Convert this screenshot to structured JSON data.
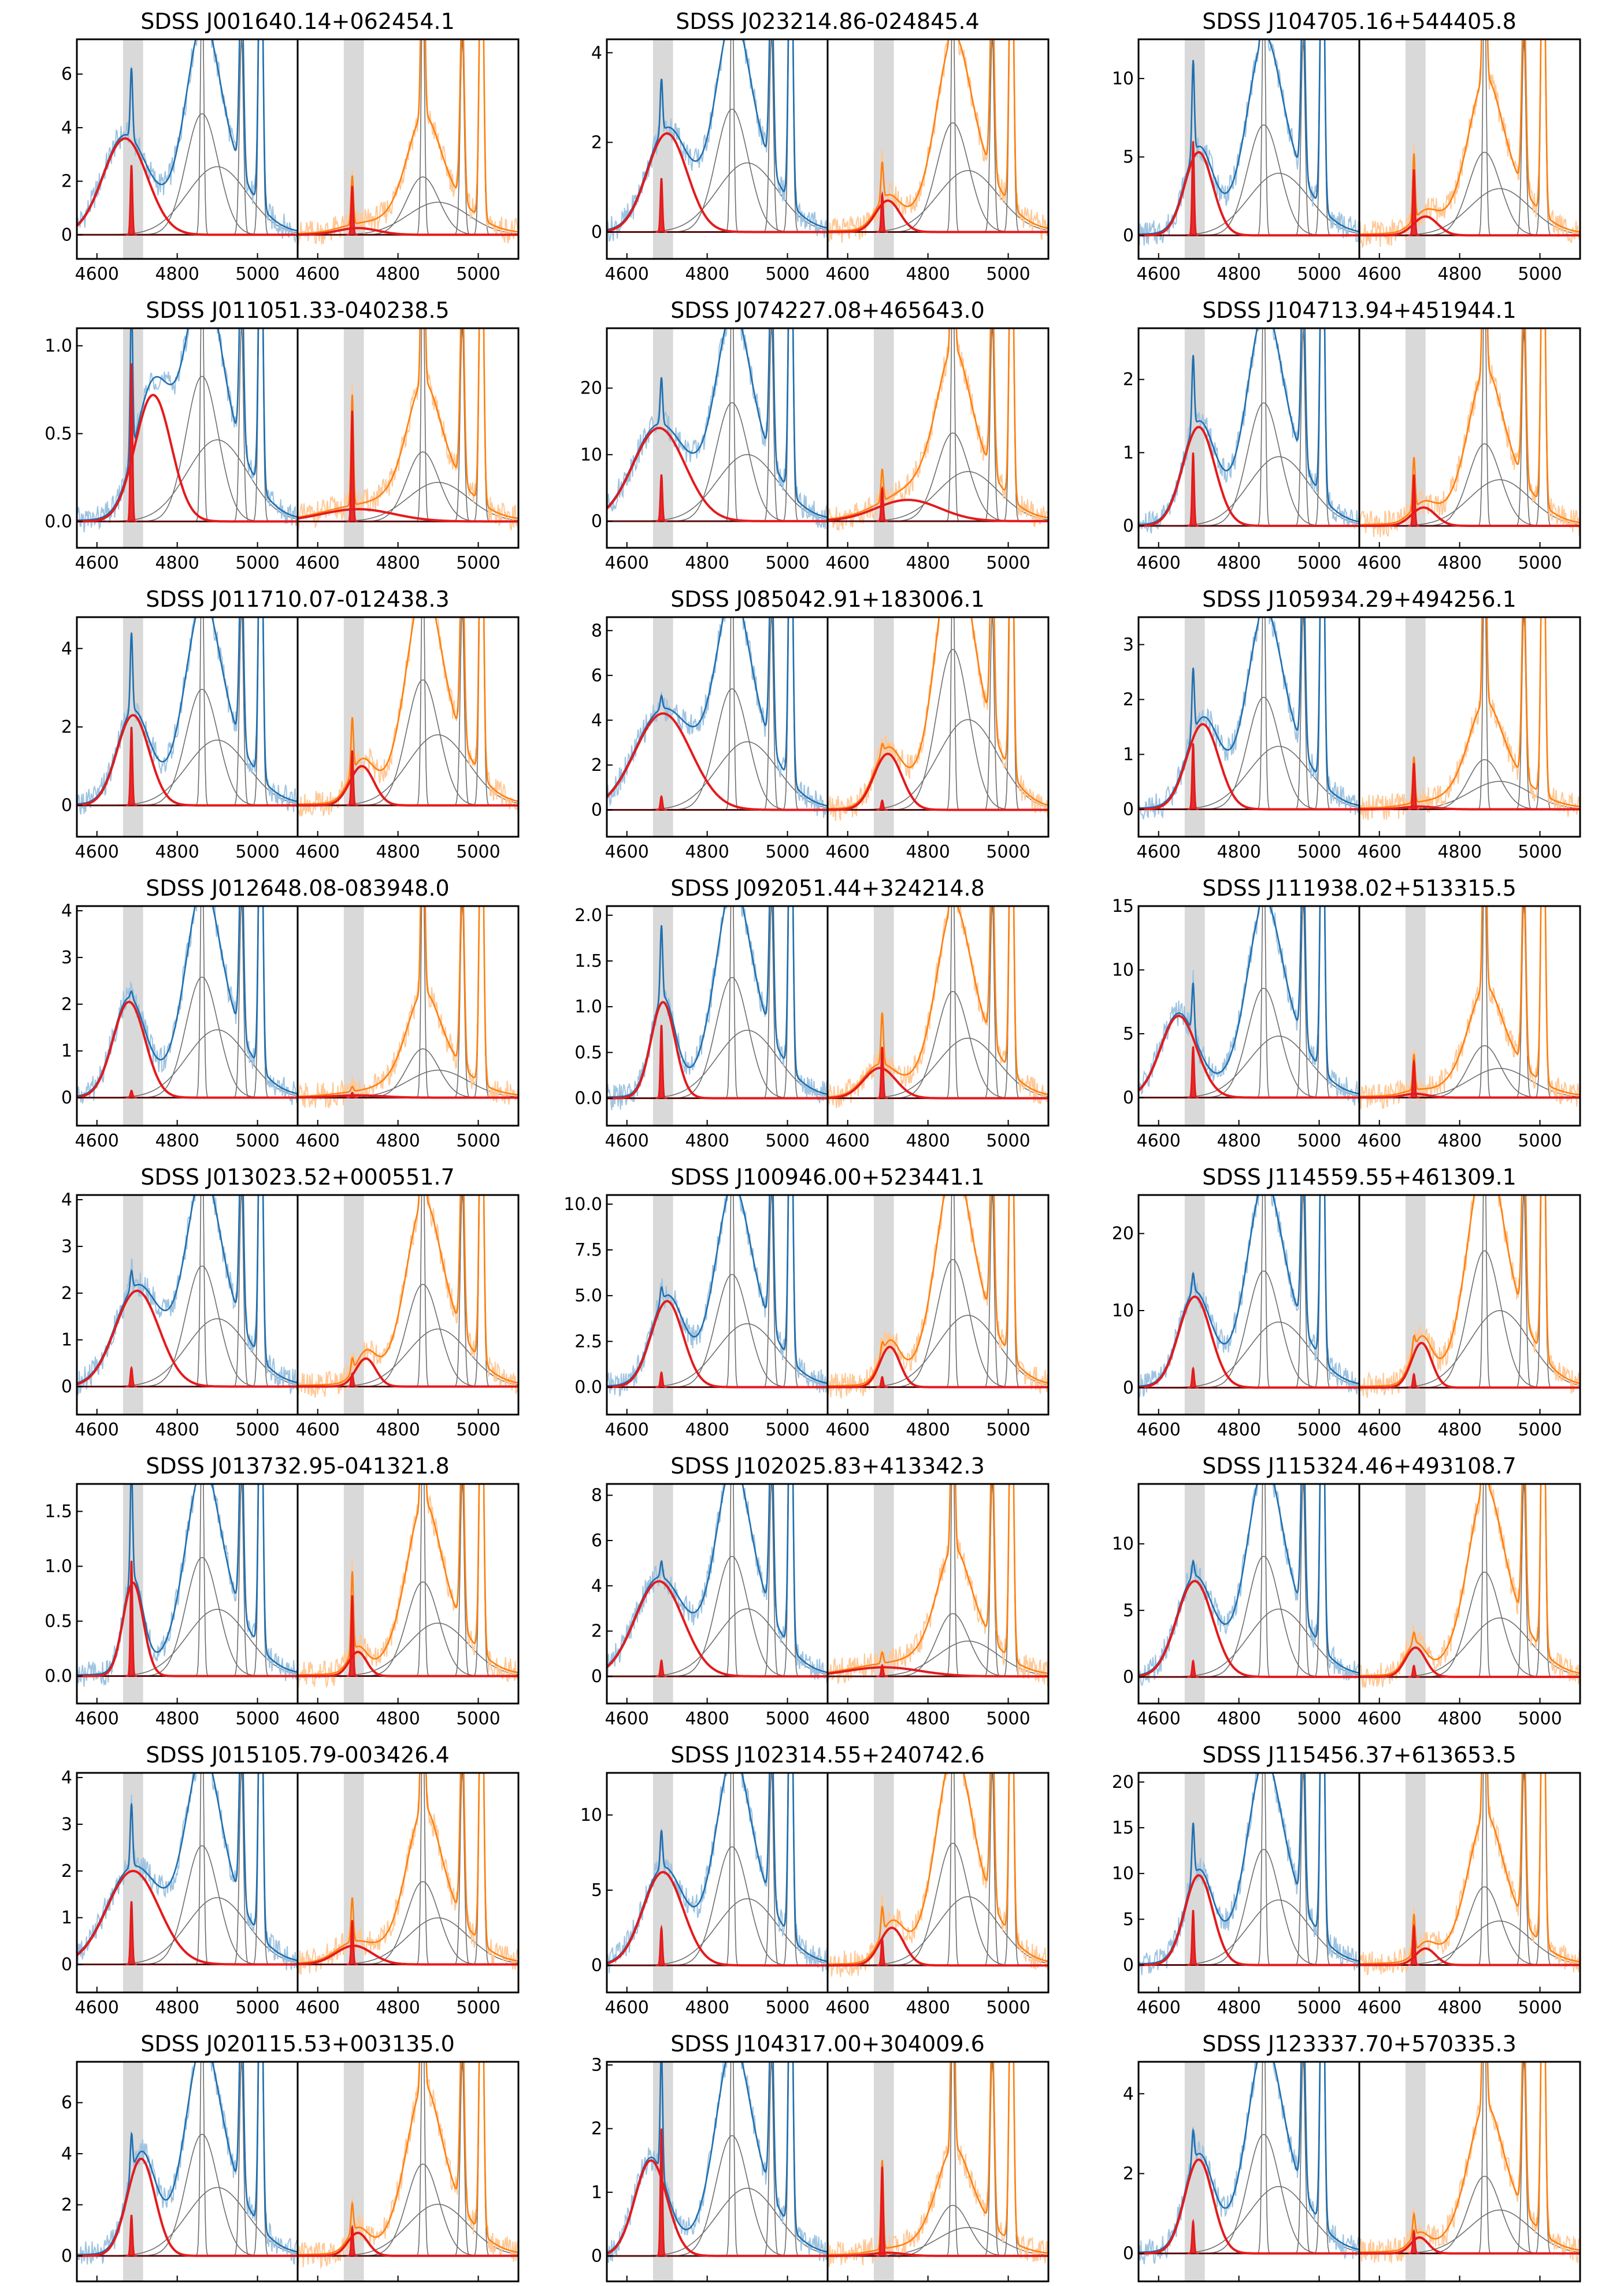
{
  "figure": {
    "x_range": [
      4550,
      5100
    ],
    "x_ticks": [
      4600,
      4800,
      5000
    ],
    "shaded_band": [
      4665,
      4715
    ],
    "colors": {
      "blue_data": "#9ec3e0",
      "blue_model": "#1f6fb0",
      "orange_data": "#ffc896",
      "orange_model": "#ff7f0e",
      "heii": "#e41a1c",
      "components": "#6e6e6e",
      "band": "#d9d9d9"
    }
  },
  "chart_data": [
    {
      "type": "line",
      "title": "SDSS J001640.14+062454.1",
      "ylim": [
        -0.9,
        7.3
      ],
      "yticks": [
        0,
        2,
        4,
        6
      ],
      "ytick_labels": [
        "0",
        "2",
        "4",
        "6"
      ],
      "broad": {
        "center": 4670,
        "amp": 3.6,
        "sigma": 55
      },
      "right_broad": {
        "center": 4700,
        "amp": 0.25,
        "sigma": 50
      },
      "narrow_amp": 2.6
    },
    {
      "type": "line",
      "title": "SDSS J023214.86-024845.4",
      "ylim": [
        -0.6,
        4.3
      ],
      "yticks": [
        0,
        2,
        4
      ],
      "ytick_labels": [
        "0",
        "2",
        "4"
      ],
      "broad": {
        "center": 4700,
        "amp": 2.2,
        "sigma": 50
      },
      "right_broad": {
        "center": 4700,
        "amp": 0.7,
        "sigma": 30
      },
      "narrow_amp": 1.2
    },
    {
      "type": "line",
      "title": "SDSS J104705.16+544405.8",
      "ylim": [
        -1.5,
        12.5
      ],
      "yticks": [
        0,
        5,
        10
      ],
      "ytick_labels": [
        "0",
        "5",
        "10"
      ],
      "broad": {
        "center": 4700,
        "amp": 5.3,
        "sigma": 35
      },
      "right_broad": {
        "center": 4715,
        "amp": 1.2,
        "sigma": 30
      },
      "narrow_amp": 6
    },
    {
      "type": "line",
      "title": "SDSS J011051.33-040238.5",
      "ylim": [
        -0.15,
        1.1
      ],
      "yticks": [
        0,
        0.5,
        1.0
      ],
      "ytick_labels": [
        "0.0",
        "0.5",
        "1.0"
      ],
      "broad": {
        "center": 4740,
        "amp": 0.72,
        "sigma": 45
      },
      "right_broad": {
        "center": 4700,
        "amp": 0.07,
        "sigma": 90
      },
      "narrow_amp": 0.9
    },
    {
      "type": "line",
      "title": "SDSS J074227.08+465643.0",
      "ylim": [
        -4,
        29
      ],
      "yticks": [
        0,
        10,
        20
      ],
      "ytick_labels": [
        "0",
        "10",
        "20"
      ],
      "broad": {
        "center": 4680,
        "amp": 14,
        "sigma": 65
      },
      "right_broad": {
        "center": 4750,
        "amp": 3.2,
        "sigma": 80
      },
      "narrow_amp": 7
    },
    {
      "type": "line",
      "title": "SDSS J104713.94+451944.1",
      "ylim": [
        -0.3,
        2.7
      ],
      "yticks": [
        0,
        1,
        2
      ],
      "ytick_labels": [
        "0",
        "1",
        "2"
      ],
      "broad": {
        "center": 4700,
        "amp": 1.35,
        "sigma": 40
      },
      "right_broad": {
        "center": 4710,
        "amp": 0.25,
        "sigma": 30
      },
      "narrow_amp": 1.0
    },
    {
      "type": "line",
      "title": "SDSS J011710.07-012438.3",
      "ylim": [
        -0.8,
        4.8
      ],
      "yticks": [
        0,
        2,
        4
      ],
      "ytick_labels": [
        "0",
        "2",
        "4"
      ],
      "broad": {
        "center": 4690,
        "amp": 2.3,
        "sigma": 40
      },
      "right_broad": {
        "center": 4710,
        "amp": 1.0,
        "sigma": 30
      },
      "narrow_amp": 2.0
    },
    {
      "type": "line",
      "title": "SDSS J085042.91+183006.1",
      "ylim": [
        -1.2,
        8.6
      ],
      "yticks": [
        0,
        2,
        4,
        6,
        8
      ],
      "ytick_labels": [
        "0",
        "2",
        "4",
        "6",
        "8"
      ],
      "broad": {
        "center": 4690,
        "amp": 4.3,
        "sigma": 70
      },
      "right_broad": {
        "center": 4700,
        "amp": 2.5,
        "sigma": 35
      },
      "narrow_amp": 0.6
    },
    {
      "type": "line",
      "title": "SDSS J105934.29+494256.1",
      "ylim": [
        -0.5,
        3.5
      ],
      "yticks": [
        0,
        1,
        2,
        3
      ],
      "ytick_labels": [
        "0",
        "1",
        "2",
        "3"
      ],
      "broad": {
        "center": 4710,
        "amp": 1.55,
        "sigma": 40
      },
      "right_broad": {
        "center": 4700,
        "amp": 0.05,
        "sigma": 40
      },
      "narrow_amp": 1.2
    },
    {
      "type": "line",
      "title": "SDSS J012648.08-083948.0",
      "ylim": [
        -0.6,
        4.1
      ],
      "yticks": [
        0,
        1,
        2,
        3,
        4
      ],
      "ytick_labels": [
        "0",
        "1",
        "2",
        "3",
        "4"
      ],
      "broad": {
        "center": 4680,
        "amp": 2.05,
        "sigma": 40
      },
      "right_broad": {
        "center": 4700,
        "amp": 0.05,
        "sigma": 60
      },
      "narrow_amp": 0.15
    },
    {
      "type": "line",
      "title": "SDSS J092051.44+324214.8",
      "ylim": [
        -0.3,
        2.1
      ],
      "yticks": [
        0,
        0.5,
        1.0,
        1.5,
        2.0
      ],
      "ytick_labels": [
        "0.0",
        "0.5",
        "1.0",
        "1.5",
        "2.0"
      ],
      "broad": {
        "center": 4690,
        "amp": 1.05,
        "sigma": 30
      },
      "right_broad": {
        "center": 4680,
        "amp": 0.33,
        "sigma": 40
      },
      "narrow_amp": 0.8
    },
    {
      "type": "line",
      "title": "SDSS J111938.02+513315.5",
      "ylim": [
        -2.2,
        15
      ],
      "yticks": [
        0,
        5,
        10,
        15
      ],
      "ytick_labels": [
        "0",
        "5",
        "10",
        "15"
      ],
      "broad": {
        "center": 4650,
        "amp": 6.4,
        "sigma": 45
      },
      "right_broad": {
        "center": 4690,
        "amp": 0.3,
        "sigma": 30
      },
      "narrow_amp": 4
    },
    {
      "type": "line",
      "title": "SDSS J013023.52+000551.7",
      "ylim": [
        -0.6,
        4.1
      ],
      "yticks": [
        0,
        1,
        2,
        3,
        4
      ],
      "ytick_labels": [
        "0",
        "1",
        "2",
        "3",
        "4"
      ],
      "broad": {
        "center": 4700,
        "amp": 2.05,
        "sigma": 55
      },
      "right_broad": {
        "center": 4720,
        "amp": 0.6,
        "sigma": 25
      },
      "narrow_amp": 0.4
    },
    {
      "type": "line",
      "title": "SDSS J100946.00+523441.1",
      "ylim": [
        -1.5,
        10.5
      ],
      "yticks": [
        0,
        2.5,
        5.0,
        7.5,
        10.0
      ],
      "ytick_labels": [
        "0.0",
        "2.5",
        "5.0",
        "7.5",
        "10.0"
      ],
      "broad": {
        "center": 4700,
        "amp": 4.7,
        "sigma": 40
      },
      "right_broad": {
        "center": 4705,
        "amp": 2.2,
        "sigma": 25
      },
      "narrow_amp": 0.8
    },
    {
      "type": "line",
      "title": "SDSS J114559.55+461309.1",
      "ylim": [
        -3.5,
        25
      ],
      "yticks": [
        0,
        10,
        20
      ],
      "ytick_labels": [
        "0",
        "10",
        "20"
      ],
      "broad": {
        "center": 4690,
        "amp": 11.8,
        "sigma": 40
      },
      "right_broad": {
        "center": 4705,
        "amp": 5.8,
        "sigma": 25
      },
      "narrow_amp": 2.5
    },
    {
      "type": "line",
      "title": "SDSS J013732.95-041321.8",
      "ylim": [
        -0.25,
        1.75
      ],
      "yticks": [
        0,
        0.5,
        1.0,
        1.5
      ],
      "ytick_labels": [
        "0.0",
        "0.5",
        "1.0",
        "1.5"
      ],
      "broad": {
        "center": 4690,
        "amp": 0.85,
        "sigma": 25
      },
      "right_broad": {
        "center": 4700,
        "amp": 0.22,
        "sigma": 22
      },
      "narrow_amp": 1.05
    },
    {
      "type": "line",
      "title": "SDSS J102025.83+413342.3",
      "ylim": [
        -1.2,
        8.5
      ],
      "yticks": [
        0,
        2,
        4,
        6,
        8
      ],
      "ytick_labels": [
        "0",
        "2",
        "4",
        "6",
        "8"
      ],
      "broad": {
        "center": 4680,
        "amp": 4.2,
        "sigma": 60
      },
      "right_broad": {
        "center": 4690,
        "amp": 0.4,
        "sigma": 90
      },
      "narrow_amp": 0.7
    },
    {
      "type": "line",
      "title": "SDSS J115324.46+493108.7",
      "ylim": [
        -2,
        14.5
      ],
      "yticks": [
        0,
        5,
        10
      ],
      "ytick_labels": [
        "0",
        "5",
        "10"
      ],
      "broad": {
        "center": 4690,
        "amp": 7.2,
        "sigma": 45
      },
      "right_broad": {
        "center": 4690,
        "amp": 2.2,
        "sigma": 25
      },
      "narrow_amp": 1.2
    },
    {
      "type": "line",
      "title": "SDSS J015105.79-003426.4",
      "ylim": [
        -0.6,
        4.1
      ],
      "yticks": [
        0,
        1,
        2,
        3,
        4
      ],
      "ytick_labels": [
        "0",
        "1",
        "2",
        "3",
        "4"
      ],
      "broad": {
        "center": 4690,
        "amp": 2.0,
        "sigma": 65
      },
      "right_broad": {
        "center": 4690,
        "amp": 0.4,
        "sigma": 45
      },
      "narrow_amp": 1.35
    },
    {
      "type": "line",
      "title": "SDSS J102314.55+240742.6",
      "ylim": [
        -1.8,
        12.8
      ],
      "yticks": [
        0,
        5,
        10
      ],
      "ytick_labels": [
        "0",
        "5",
        "10"
      ],
      "broad": {
        "center": 4690,
        "amp": 6.2,
        "sigma": 50
      },
      "right_broad": {
        "center": 4710,
        "amp": 2.5,
        "sigma": 30
      },
      "narrow_amp": 2.5
    },
    {
      "type": "line",
      "title": "SDSS J115456.37+613653.5",
      "ylim": [
        -3,
        21
      ],
      "yticks": [
        0,
        5,
        10,
        15,
        20
      ],
      "ytick_labels": [
        "0",
        "5",
        "10",
        "15",
        "20"
      ],
      "broad": {
        "center": 4700,
        "amp": 9.8,
        "sigma": 35
      },
      "right_broad": {
        "center": 4715,
        "amp": 1.8,
        "sigma": 25
      },
      "narrow_amp": 6
    },
    {
      "type": "line",
      "title": "SDSS J020115.53+003135.0",
      "ylim": [
        -1,
        7.6
      ],
      "yticks": [
        0,
        2,
        4,
        6
      ],
      "ytick_labels": [
        "0",
        "2",
        "4",
        "6"
      ],
      "broad": {
        "center": 4710,
        "amp": 3.8,
        "sigma": 35
      },
      "right_broad": {
        "center": 4700,
        "amp": 0.9,
        "sigma": 25
      },
      "narrow_amp": 1.6
    },
    {
      "type": "line",
      "title": "SDSS J104317.00+304009.6",
      "ylim": [
        -0.4,
        3.05
      ],
      "yticks": [
        0,
        1,
        2,
        3
      ],
      "ytick_labels": [
        "0",
        "1",
        "2",
        "3"
      ],
      "broad": {
        "center": 4660,
        "amp": 1.5,
        "sigma": 40
      },
      "right_broad": {
        "center": 4700,
        "amp": 0.05,
        "sigma": 40
      },
      "narrow_amp": 2.0
    },
    {
      "type": "line",
      "title": "SDSS J123337.70+570335.3",
      "ylim": [
        -0.7,
        4.8
      ],
      "yticks": [
        0,
        2,
        4
      ],
      "ytick_labels": [
        "0",
        "2",
        "4"
      ],
      "broad": {
        "center": 4700,
        "amp": 2.35,
        "sigma": 35
      },
      "right_broad": {
        "center": 4700,
        "amp": 0.4,
        "sigma": 22
      },
      "narrow_amp": 0.8
    }
  ]
}
